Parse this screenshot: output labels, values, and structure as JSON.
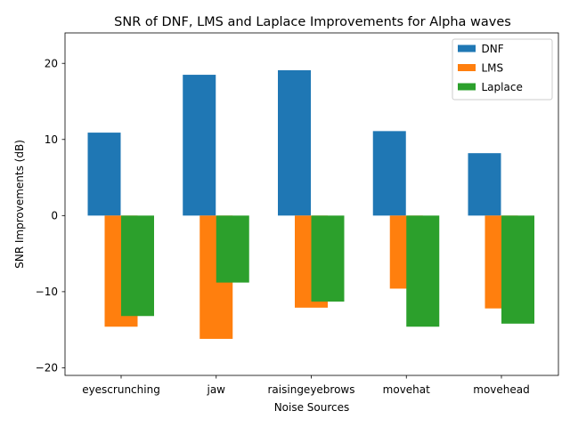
{
  "chart_data": {
    "type": "bar",
    "title": "SNR of DNF, LMS and Laplace Improvements for Alpha waves",
    "xlabel": "Noise Sources",
    "ylabel": "SNR Improvements (dB)",
    "categories": [
      "eyescrunching",
      "jaw",
      "raisingeyebrows",
      "movehat",
      "movehead"
    ],
    "series": [
      {
        "name": "DNF",
        "color": "#1f77b4",
        "values": [
          10.9,
          18.5,
          19.1,
          11.1,
          8.2
        ]
      },
      {
        "name": "LMS",
        "color": "#ff7f0e",
        "values": [
          -14.6,
          -16.2,
          -12.1,
          -9.6,
          -12.2
        ]
      },
      {
        "name": "Laplace",
        "color": "#2ca02c",
        "values": [
          -13.2,
          -8.8,
          -11.3,
          -14.6,
          -14.2
        ]
      }
    ],
    "ylim": [
      -21,
      24
    ],
    "yticks": [
      -20,
      -10,
      0,
      10,
      20
    ],
    "ytick_labels": [
      "−20",
      "−10",
      "0",
      "10",
      "20"
    ],
    "legend_position": "upper right",
    "grid": false
  }
}
